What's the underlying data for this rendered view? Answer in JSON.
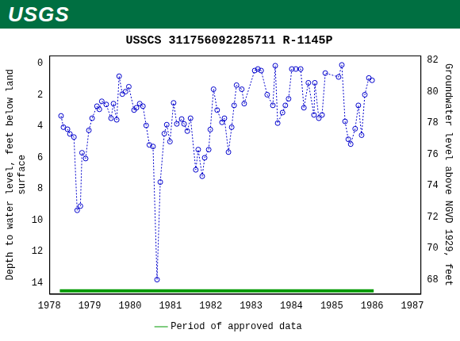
{
  "header": {
    "logo": "USGS"
  },
  "chart_data": {
    "type": "scatter",
    "title": "USSCS 311756092285711 R-1145P",
    "y_label": [
      "Depth to water level, feet below land",
      "surface"
    ],
    "y2_label": "Groundwater level above NGVD 1929, feet",
    "xlim": [
      1978,
      1987.2
    ],
    "xticks": [
      1978,
      1979,
      1980,
      1981,
      1982,
      1983,
      1984,
      1985,
      1986,
      1987
    ],
    "ylim": [
      14.7,
      -0.5
    ],
    "yticks": [
      0,
      2,
      4,
      6,
      8,
      10,
      12,
      14
    ],
    "y2lim": [
      67.1,
      82.3
    ],
    "y2ticks": [
      68,
      70,
      72,
      74,
      76,
      78,
      80,
      82
    ],
    "grid": false,
    "legend": "bottom",
    "series": [
      {
        "color": "#0000cc",
        "marker": "circle",
        "line_style": "dotted",
        "x": [
          1978.29,
          1978.35,
          1978.45,
          1978.51,
          1978.61,
          1978.69,
          1978.77,
          1978.81,
          1978.9,
          1978.98,
          1979.06,
          1979.18,
          1979.24,
          1979.3,
          1979.41,
          1979.53,
          1979.59,
          1979.67,
          1979.73,
          1979.81,
          1979.89,
          1979.97,
          1980.1,
          1980.16,
          1980.24,
          1980.32,
          1980.4,
          1980.48,
          1980.57,
          1980.67,
          1980.75,
          1980.85,
          1980.91,
          1980.99,
          1981.08,
          1981.16,
          1981.28,
          1981.34,
          1981.42,
          1981.5,
          1981.63,
          1981.69,
          1981.79,
          1981.85,
          1981.95,
          1981.99,
          1982.07,
          1982.16,
          1982.28,
          1982.34,
          1982.44,
          1982.52,
          1982.58,
          1982.64,
          1982.77,
          1982.83,
          1983.09,
          1983.17,
          1983.25,
          1983.4,
          1983.54,
          1983.6,
          1983.66,
          1983.78,
          1983.85,
          1983.93,
          1984.01,
          1984.11,
          1984.23,
          1984.31,
          1984.42,
          1984.56,
          1984.58,
          1984.68,
          1984.76,
          1984.84,
          1985.17,
          1985.25,
          1985.33,
          1985.41,
          1985.47,
          1985.58,
          1985.66,
          1985.74,
          1985.82,
          1985.92,
          1986.0
        ],
        "values": [
          3.35,
          4.07,
          4.2,
          4.5,
          4.7,
          9.37,
          9.1,
          5.7,
          6.07,
          4.27,
          3.5,
          2.73,
          2.93,
          2.42,
          2.62,
          3.5,
          2.57,
          3.6,
          0.82,
          1.96,
          1.8,
          1.49,
          2.98,
          2.83,
          2.57,
          2.73,
          3.96,
          5.2,
          5.3,
          13.79,
          7.57,
          4.48,
          3.91,
          4.99,
          2.52,
          3.86,
          3.55,
          3.86,
          4.32,
          3.5,
          6.79,
          5.5,
          7.2,
          6.02,
          5.5,
          4.22,
          1.65,
          2.98,
          3.76,
          3.5,
          5.66,
          4.07,
          2.68,
          1.39,
          1.65,
          2.57,
          0.46,
          0.36,
          0.46,
          2.0,
          2.68,
          0.15,
          3.81,
          3.14,
          2.68,
          2.26,
          0.36,
          0.36,
          0.36,
          2.83,
          1.24,
          3.29,
          1.24,
          3.5,
          3.29,
          0.62,
          0.87,
          0.1,
          3.7,
          4.84,
          5.15,
          4.17,
          2.68,
          4.58,
          2.0,
          0.93,
          1.08
        ]
      },
      {
        "name": "Period of approved data",
        "color": "#009900",
        "marker": "none",
        "line_style": "solid",
        "x": [
          1978.26,
          1986.04
        ],
        "values": [
          14.5,
          14.5
        ]
      }
    ]
  }
}
